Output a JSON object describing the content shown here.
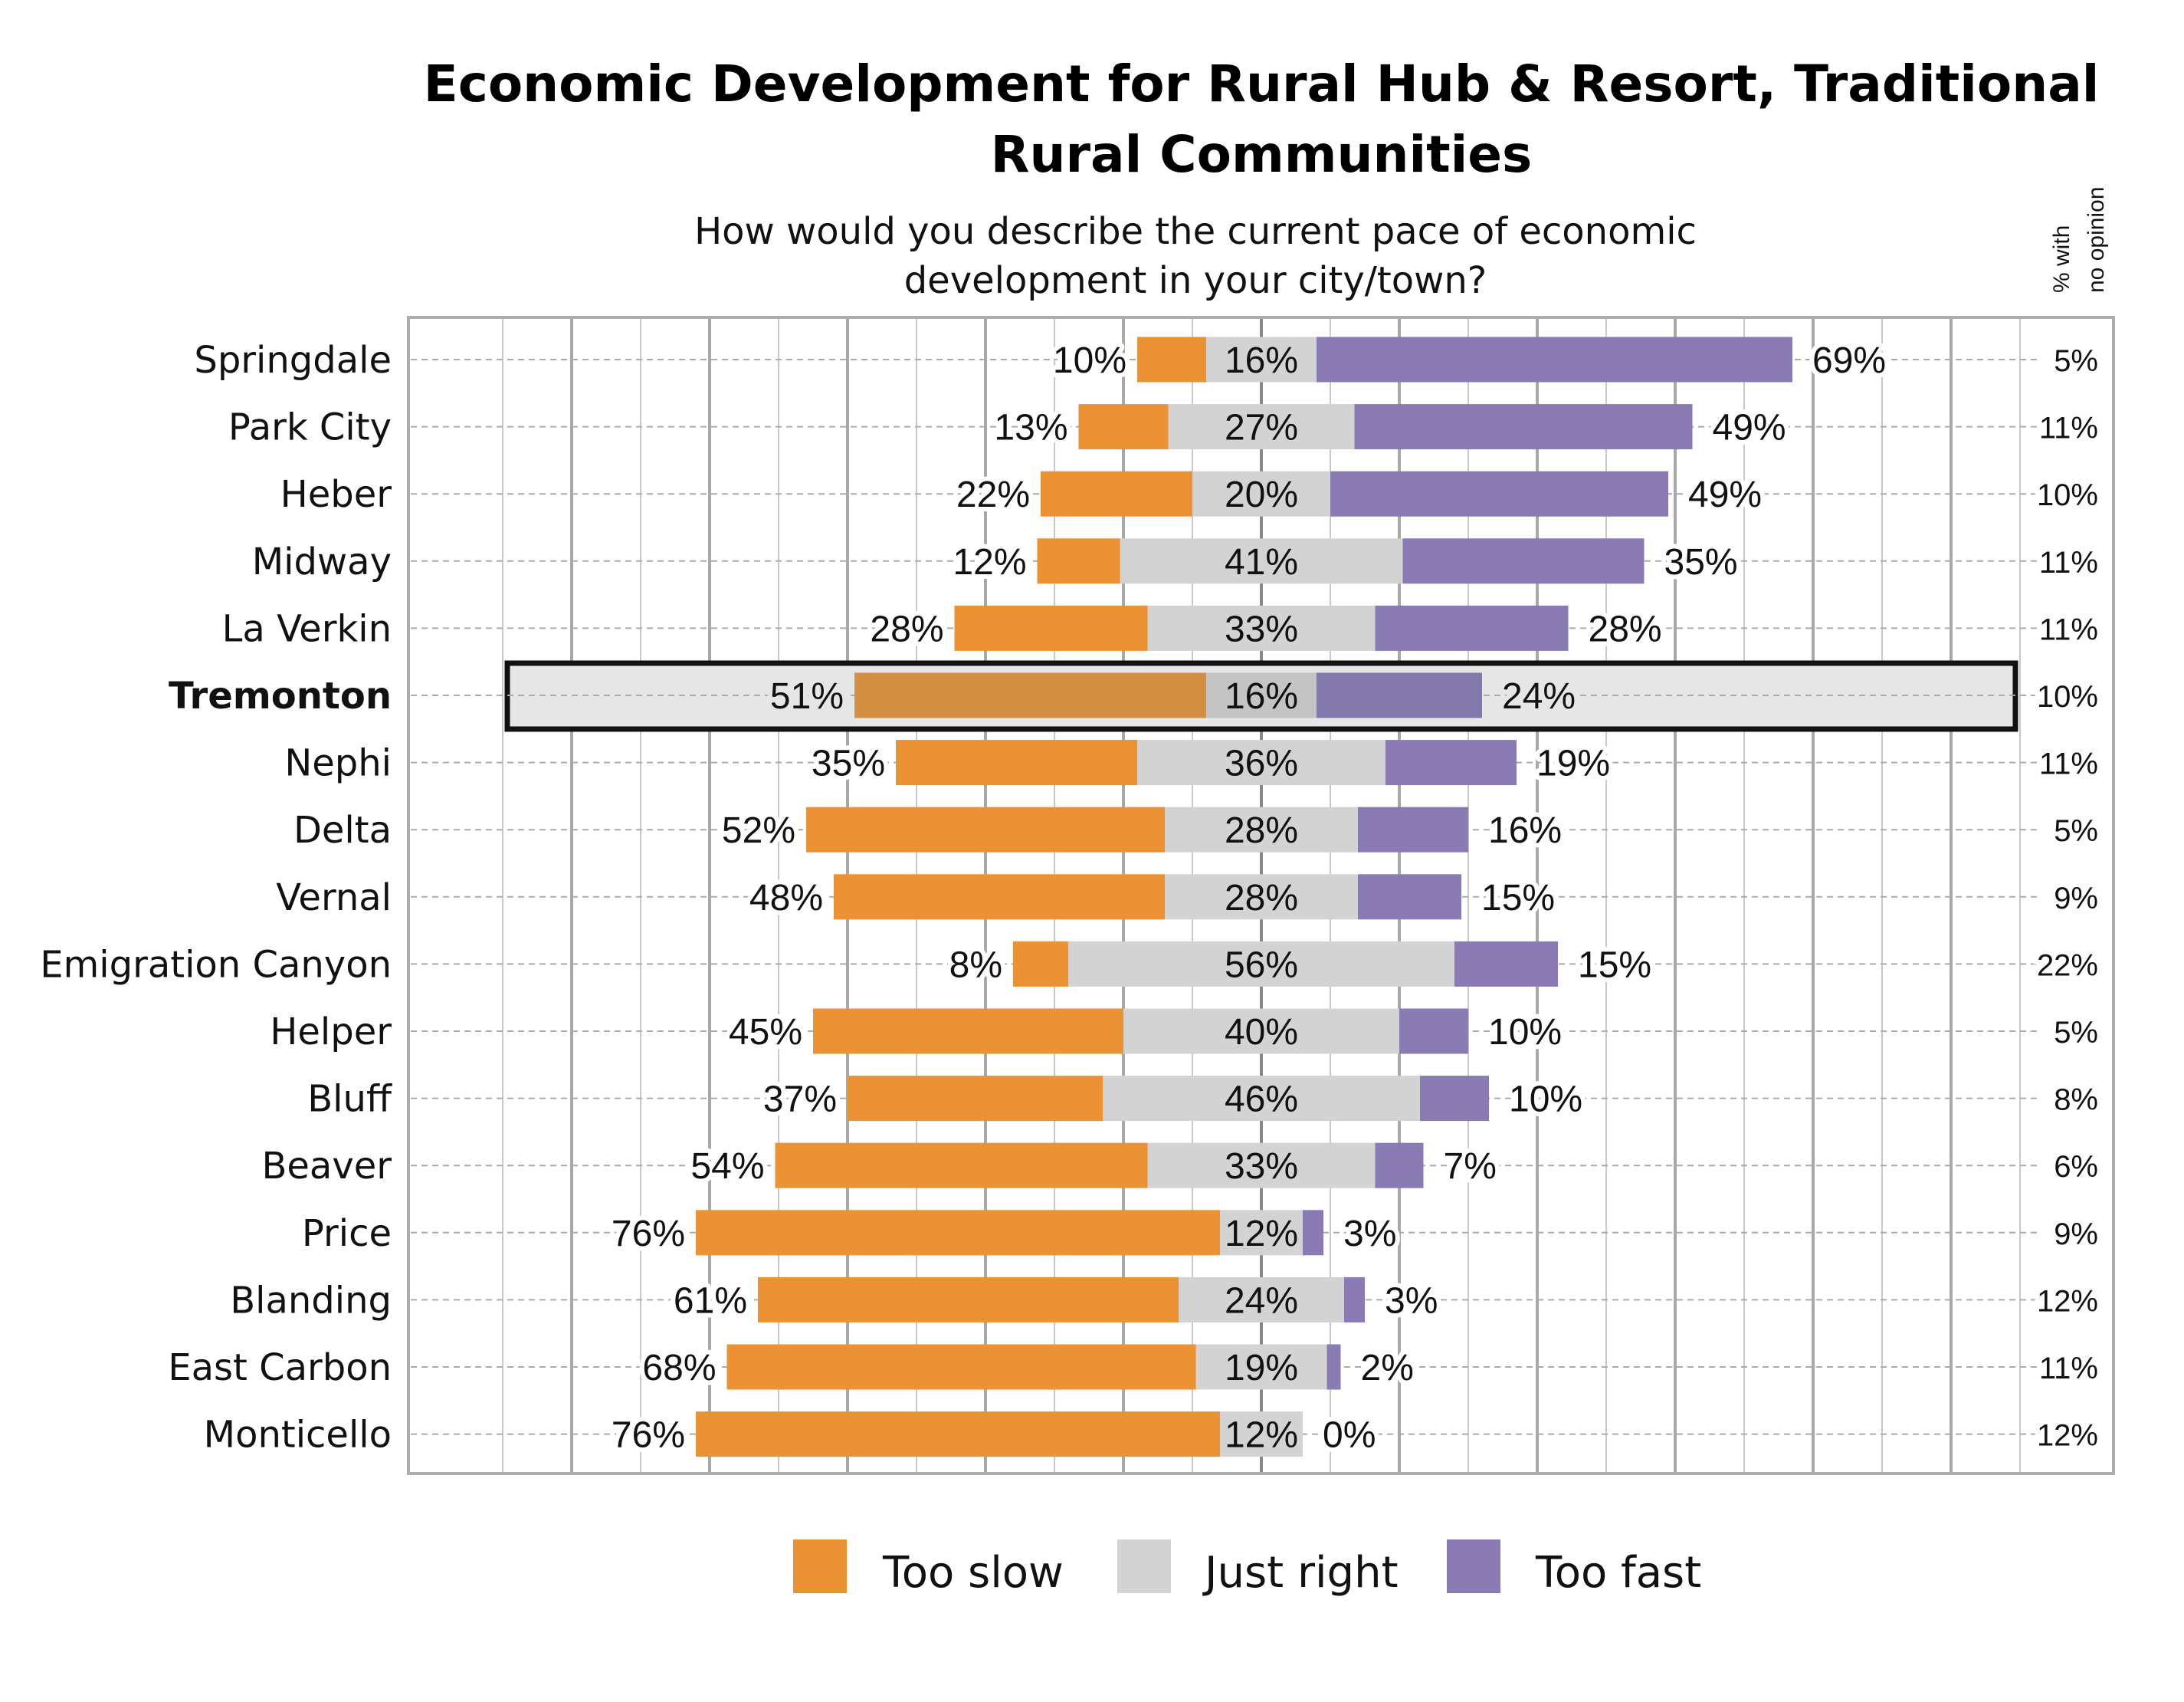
{
  "chart_data": {
    "type": "bar",
    "orientation": "horizontal-diverging-stacked",
    "title": "Economic Development for Rural Hub & Resort, Traditional Rural Communities",
    "title_lines": [
      "Economic Development for Rural Hub & Resort, Traditional",
      "Rural Communities"
    ],
    "subtitle_lines": [
      "How would you describe the current pace of economic",
      "development in your city/town?"
    ],
    "extra_column_header": [
      "% with",
      "no opinion"
    ],
    "highlight": "Tremonton",
    "grid": true,
    "legend_position": "bottom",
    "colors": {
      "too_slow": "#EB9234",
      "just_right": "#D3D3D3",
      "too_fast": "#8A7BB5",
      "highlight_bg": "#E6E6E6"
    },
    "categories": [
      "Springdale",
      "Park City",
      "Heber",
      "Midway",
      "La Verkin",
      "Tremonton",
      "Nephi",
      "Delta",
      "Vernal",
      "Emigration Canyon",
      "Helper",
      "Bluff",
      "Beaver",
      "Price",
      "Blanding",
      "East Carbon",
      "Monticello"
    ],
    "series": [
      {
        "name": "Too slow",
        "values": [
          10,
          13,
          22,
          12,
          28,
          51,
          35,
          52,
          48,
          8,
          45,
          37,
          54,
          76,
          61,
          68,
          76
        ]
      },
      {
        "name": "Just right",
        "values": [
          16,
          27,
          20,
          41,
          33,
          16,
          36,
          28,
          28,
          56,
          40,
          46,
          33,
          12,
          24,
          19,
          12
        ]
      },
      {
        "name": "Too fast",
        "values": [
          69,
          49,
          49,
          35,
          28,
          24,
          19,
          16,
          15,
          15,
          10,
          10,
          7,
          3,
          3,
          2,
          0
        ]
      }
    ],
    "no_opinion": [
      5,
      11,
      10,
      11,
      11,
      10,
      11,
      5,
      9,
      22,
      5,
      8,
      6,
      9,
      12,
      11,
      12
    ],
    "unit": "%"
  }
}
